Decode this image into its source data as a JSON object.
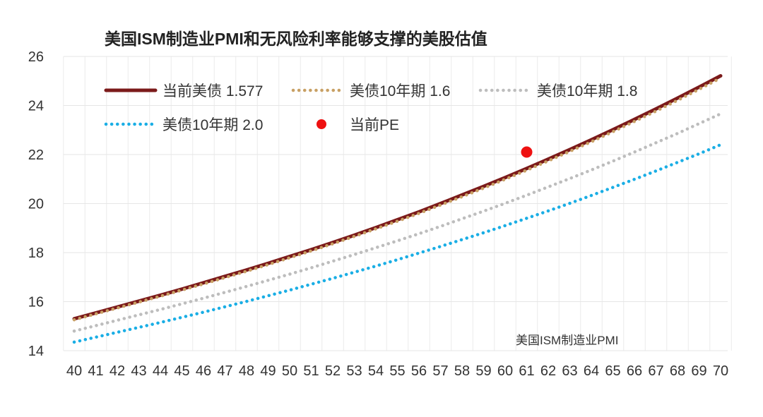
{
  "chart_data": {
    "type": "line",
    "title": "美国ISM制造业PMI和无风险利率能够支撑的美股估值",
    "xlabel": "美国ISM制造业PMI",
    "ylabel": "",
    "x": [
      40,
      41,
      42,
      43,
      44,
      45,
      46,
      47,
      48,
      49,
      50,
      51,
      52,
      53,
      54,
      55,
      56,
      57,
      58,
      59,
      60,
      61,
      62,
      63,
      64,
      65,
      66,
      67,
      68,
      69,
      70
    ],
    "ylim": [
      14,
      26
    ],
    "yticks": [
      14,
      16,
      18,
      20,
      22,
      24,
      26
    ],
    "grid": true,
    "legend_position": "top-left",
    "series": [
      {
        "name": "当前美债 1.577",
        "style": "solid",
        "color": "#7b1a1a",
        "values": [
          15.3,
          15.54,
          15.78,
          16.02,
          16.26,
          16.51,
          16.77,
          17.03,
          17.29,
          17.56,
          17.84,
          18.12,
          18.41,
          18.71,
          19.02,
          19.34,
          19.66,
          20.0,
          20.35,
          20.7,
          21.06,
          21.43,
          21.81,
          22.2,
          22.6,
          23.01,
          23.43,
          23.86,
          24.3,
          24.75,
          25.21
        ]
      },
      {
        "name": "美债10年期 1.6",
        "style": "dotted",
        "color": "#c8a064",
        "values": [
          15.26,
          15.5,
          15.74,
          15.98,
          16.22,
          16.47,
          16.72,
          16.98,
          17.24,
          17.51,
          17.79,
          18.07,
          18.36,
          18.66,
          18.97,
          19.28,
          19.6,
          19.94,
          20.28,
          20.63,
          20.99,
          21.36,
          21.74,
          22.13,
          22.52,
          22.93,
          23.35,
          23.77,
          24.21,
          24.66,
          25.12
        ]
      },
      {
        "name": "美债10年期 1.8",
        "style": "dotted",
        "color": "#bdbdbd",
        "values": [
          14.8,
          15.02,
          15.24,
          15.46,
          15.68,
          15.91,
          16.14,
          16.38,
          16.62,
          16.87,
          17.12,
          17.38,
          17.65,
          17.92,
          18.2,
          18.48,
          18.77,
          19.07,
          19.38,
          19.69,
          20.01,
          20.34,
          20.68,
          21.02,
          21.37,
          21.73,
          22.1,
          22.48,
          22.86,
          23.26,
          23.66
        ]
      },
      {
        "name": "美债10年期 2.0",
        "style": "dotted",
        "color": "#1aaee5",
        "values": [
          14.35,
          14.55,
          14.75,
          14.95,
          15.15,
          15.36,
          15.57,
          15.79,
          16.01,
          16.24,
          16.47,
          16.71,
          16.95,
          17.2,
          17.45,
          17.71,
          17.98,
          18.25,
          18.53,
          18.81,
          19.1,
          19.4,
          19.7,
          20.01,
          20.33,
          20.66,
          20.99,
          21.33,
          21.68,
          22.03,
          22.4
        ]
      },
      {
        "name": "当前PE",
        "style": "point",
        "color": "#ee1111",
        "points": [
          {
            "x": 61,
            "y": 22.1
          }
        ]
      }
    ]
  }
}
